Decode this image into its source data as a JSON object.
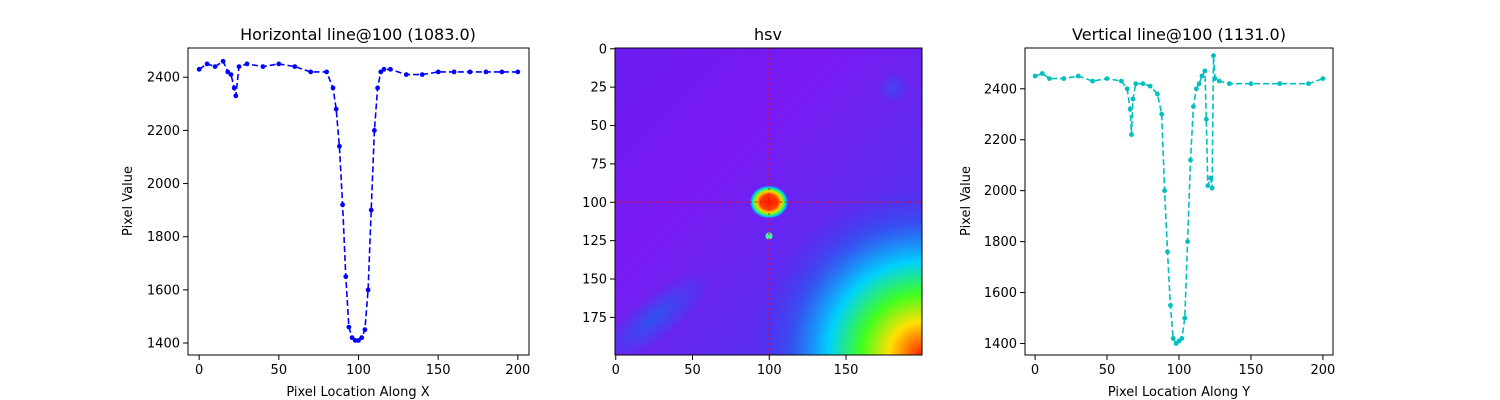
{
  "chart_data": [
    {
      "type": "line",
      "title": "Horizontal line@100 (1083.0)",
      "xlabel": "Pixel Location Along X",
      "ylabel": "Pixel Value",
      "xlim": [
        -7,
        207
      ],
      "ylim": [
        1355,
        2510
      ],
      "xticks": [
        0,
        50,
        100,
        150,
        200
      ],
      "yticks": [
        1400,
        1600,
        1800,
        2000,
        2200,
        2400
      ],
      "color": "#0000ff",
      "line_style": "dashed",
      "marker": "dot",
      "series": [
        {
          "x": [
            0,
            5,
            10,
            15,
            18,
            20,
            22,
            23,
            25,
            30,
            40,
            50,
            60,
            70,
            80,
            84,
            86,
            88,
            90,
            92,
            94,
            96,
            98,
            100,
            102,
            104,
            106,
            108,
            110,
            112,
            114,
            116,
            120,
            130,
            140,
            150,
            160,
            170,
            180,
            190,
            200
          ],
          "y": [
            2430,
            2450,
            2440,
            2460,
            2420,
            2410,
            2360,
            2330,
            2440,
            2450,
            2440,
            2450,
            2440,
            2420,
            2420,
            2360,
            2280,
            2140,
            1920,
            1650,
            1460,
            1420,
            1410,
            1410,
            1420,
            1450,
            1600,
            1900,
            2200,
            2360,
            2420,
            2430,
            2430,
            2410,
            2410,
            2420,
            2420,
            2420,
            2420,
            2420,
            2420
          ]
        }
      ]
    },
    {
      "type": "heatmap",
      "title": "hsv",
      "colormap": "hsv",
      "xlim": [
        0,
        199
      ],
      "ylim": [
        199,
        0
      ],
      "xticks": [
        0,
        50,
        100,
        150
      ],
      "yticks": [
        0,
        25,
        50,
        75,
        100,
        125,
        150,
        175
      ],
      "crosshair": {
        "x": 100,
        "y": 100,
        "color": "#ff0000"
      },
      "features": [
        {
          "kind": "hot-spot",
          "x": 100,
          "y": 100
        },
        {
          "kind": "small-spot",
          "x": 100,
          "y": 122
        }
      ]
    },
    {
      "type": "line",
      "title": "Vertical line@100 (1131.0)",
      "xlabel": "Pixel Location Along Y",
      "ylabel": "Pixel Value",
      "xlim": [
        -7,
        207
      ],
      "ylim": [
        1355,
        2560
      ],
      "xticks": [
        0,
        50,
        100,
        150,
        200
      ],
      "yticks": [
        1400,
        1600,
        1800,
        2000,
        2200,
        2400
      ],
      "color": "#00bfbf",
      "line_style": "dashed",
      "marker": "dot",
      "series": [
        {
          "x": [
            0,
            5,
            10,
            20,
            30,
            40,
            50,
            60,
            64,
            66,
            67,
            68,
            70,
            75,
            80,
            85,
            88,
            90,
            92,
            94,
            96,
            98,
            100,
            102,
            104,
            106,
            108,
            110,
            112,
            114,
            116,
            118,
            119,
            120,
            122,
            123,
            124,
            125,
            128,
            135,
            150,
            170,
            190,
            200
          ],
          "y": [
            2450,
            2460,
            2440,
            2440,
            2450,
            2430,
            2440,
            2430,
            2400,
            2320,
            2220,
            2360,
            2420,
            2420,
            2410,
            2380,
            2300,
            2000,
            1760,
            1550,
            1420,
            1400,
            1410,
            1420,
            1500,
            1800,
            2120,
            2330,
            2400,
            2420,
            2450,
            2470,
            2280,
            2020,
            2050,
            2010,
            2530,
            2440,
            2430,
            2420,
            2420,
            2420,
            2420,
            2440
          ]
        }
      ]
    }
  ]
}
